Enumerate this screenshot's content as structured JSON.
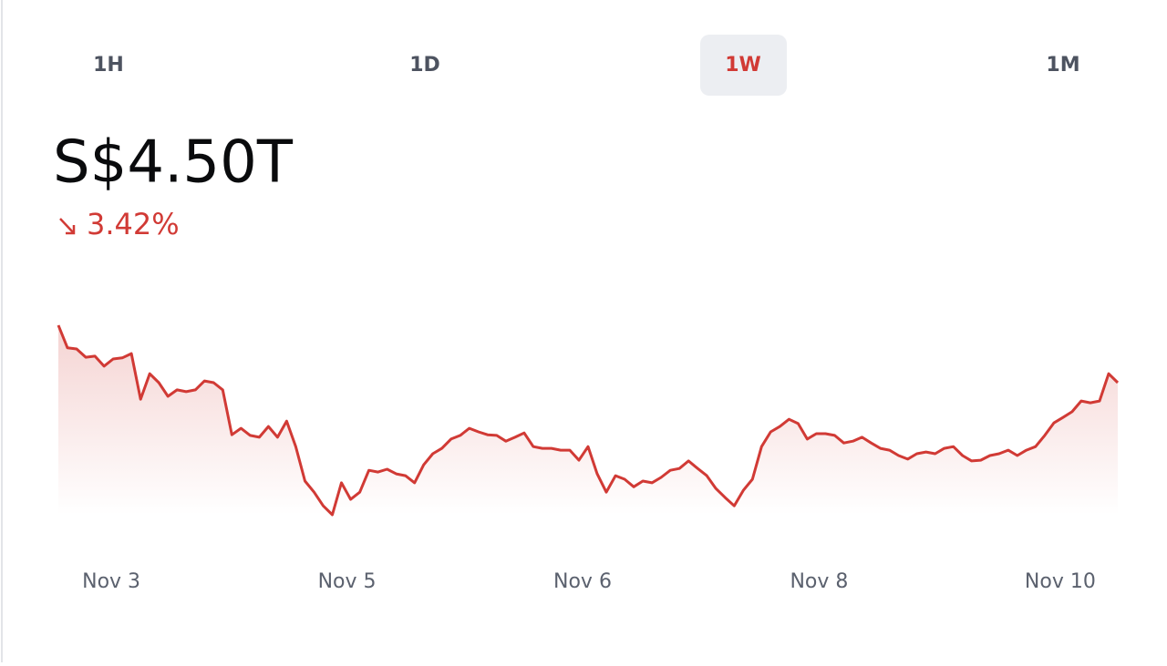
{
  "tabs": [
    "1H",
    "1D",
    "1W",
    "1M"
  ],
  "active_tab": 2,
  "price": "S$4.50T",
  "change": "3.42%",
  "chart_data": {
    "type": "line",
    "color": "#d13a35",
    "values": [
      4.66,
      4.597,
      4.594,
      4.571,
      4.574,
      4.546,
      4.566,
      4.569,
      4.581,
      4.454,
      4.525,
      4.5,
      4.462,
      4.48,
      4.475,
      4.48,
      4.505,
      4.5,
      4.48,
      4.355,
      4.373,
      4.353,
      4.348,
      4.378,
      4.348,
      4.393,
      4.322,
      4.226,
      4.195,
      4.157,
      4.132,
      4.221,
      4.175,
      4.195,
      4.256,
      4.251,
      4.259,
      4.246,
      4.241,
      4.221,
      4.271,
      4.302,
      4.317,
      4.343,
      4.353,
      4.373,
      4.363,
      4.355,
      4.353,
      4.337,
      4.348,
      4.36,
      4.322,
      4.317,
      4.317,
      4.312,
      4.312,
      4.284,
      4.322,
      4.246,
      4.195,
      4.241,
      4.231,
      4.21,
      4.226,
      4.221,
      4.236,
      4.256,
      4.261,
      4.282,
      4.261,
      4.241,
      4.205,
      4.18,
      4.157,
      4.2,
      4.231,
      4.322,
      4.363,
      4.378,
      4.398,
      4.386,
      4.343,
      4.358,
      4.358,
      4.353,
      4.332,
      4.337,
      4.348,
      4.332,
      4.317,
      4.312,
      4.297,
      4.287,
      4.302,
      4.307,
      4.302,
      4.317,
      4.322,
      4.297,
      4.282,
      4.284,
      4.297,
      4.302,
      4.312,
      4.297,
      4.312,
      4.322,
      4.353,
      4.388,
      4.403,
      4.419,
      4.449,
      4.444,
      4.449,
      4.525,
      4.5
    ],
    "xlim": [
      0,
      116
    ],
    "xticks": [
      {
        "value": 5.8,
        "label": "Nov 3"
      },
      {
        "value": 31.6,
        "label": "Nov 5"
      },
      {
        "value": 57.4,
        "label": "Nov 6"
      },
      {
        "value": 83.3,
        "label": "Nov 8"
      },
      {
        "value": 109.7,
        "label": "Nov 10"
      }
    ],
    "ylim": [
      4.132,
      4.66
    ]
  }
}
